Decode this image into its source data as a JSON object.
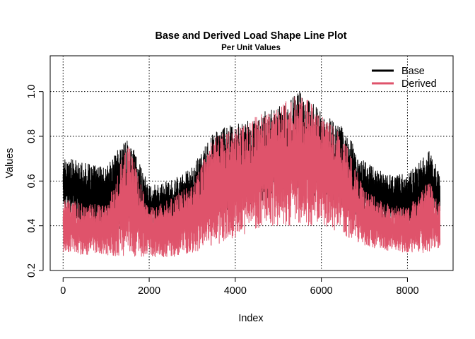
{
  "chart_data": {
    "type": "line",
    "title": "Base and Derived Load Shape Line Plot",
    "subtitle": "Per Unit Values",
    "xlabel": "Index",
    "ylabel": "Values",
    "xlim": [
      -300,
      9060
    ],
    "ylim": [
      0.2,
      1.16
    ],
    "xticks": [
      0,
      2000,
      4000,
      6000,
      8000
    ],
    "yticks": [
      0.2,
      0.4,
      0.6,
      0.8,
      1.0
    ],
    "xtick_labels": [
      "0",
      "2000",
      "4000",
      "6000",
      "8000"
    ],
    "ytick_labels": [
      "0.2",
      "0.4",
      "0.6",
      "0.8",
      "1.0"
    ],
    "grid": true,
    "grid_style": "dotted",
    "legend_position": "top-right",
    "n_points": 8760,
    "series": [
      {
        "name": "Base",
        "color": "#000000",
        "envelope_x": [
          0,
          500,
          1000,
          1500,
          2000,
          2500,
          3000,
          3500,
          4000,
          4500,
          5000,
          5500,
          6000,
          6500,
          7000,
          7500,
          8000,
          8500,
          8760
        ],
        "envelope_min": [
          0.48,
          0.39,
          0.4,
          0.37,
          0.38,
          0.38,
          0.41,
          0.44,
          0.47,
          0.5,
          0.53,
          0.54,
          0.53,
          0.48,
          0.42,
          0.41,
          0.4,
          0.41,
          0.45
        ],
        "envelope_max": [
          0.71,
          0.68,
          0.66,
          0.81,
          0.58,
          0.6,
          0.66,
          0.82,
          0.86,
          0.9,
          0.93,
          1.0,
          0.91,
          0.84,
          0.69,
          0.63,
          0.63,
          0.74,
          0.63
        ]
      },
      {
        "name": "Derived",
        "color": "#DF536B",
        "envelope_x": [
          0,
          500,
          1000,
          1500,
          2000,
          2500,
          3000,
          3500,
          4000,
          4500,
          5000,
          5500,
          6000,
          6500,
          7000,
          7500,
          8000,
          8500,
          8760
        ],
        "envelope_min": [
          0.28,
          0.27,
          0.27,
          0.26,
          0.26,
          0.26,
          0.28,
          0.31,
          0.35,
          0.38,
          0.4,
          0.4,
          0.4,
          0.36,
          0.31,
          0.29,
          0.28,
          0.28,
          0.3
        ],
        "envelope_max": [
          0.52,
          0.5,
          0.49,
          0.78,
          0.48,
          0.52,
          0.6,
          0.8,
          0.84,
          0.89,
          0.94,
          1.0,
          0.9,
          0.8,
          0.56,
          0.5,
          0.48,
          0.6,
          0.5
        ]
      }
    ]
  }
}
